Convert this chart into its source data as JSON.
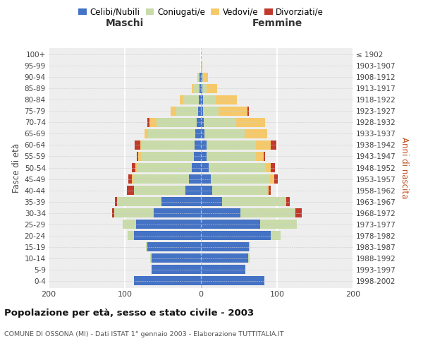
{
  "age_groups": [
    "0-4",
    "5-9",
    "10-14",
    "15-19",
    "20-24",
    "25-29",
    "30-34",
    "35-39",
    "40-44",
    "45-49",
    "50-54",
    "55-59",
    "60-64",
    "65-69",
    "70-74",
    "75-79",
    "80-84",
    "85-89",
    "90-94",
    "95-99",
    "100+"
  ],
  "birth_years": [
    "1998-2002",
    "1993-1997",
    "1988-1992",
    "1983-1987",
    "1978-1982",
    "1973-1977",
    "1968-1972",
    "1963-1967",
    "1958-1962",
    "1953-1957",
    "1948-1952",
    "1943-1947",
    "1938-1942",
    "1933-1937",
    "1928-1932",
    "1923-1927",
    "1918-1922",
    "1913-1917",
    "1908-1912",
    "1903-1907",
    "≤ 1902"
  ],
  "males": {
    "celibi": [
      88,
      65,
      65,
      70,
      88,
      85,
      62,
      52,
      20,
      16,
      12,
      9,
      8,
      7,
      6,
      4,
      3,
      2,
      2,
      0,
      0
    ],
    "coniugati": [
      0,
      0,
      2,
      2,
      8,
      18,
      52,
      58,
      68,
      73,
      72,
      70,
      70,
      62,
      52,
      28,
      20,
      8,
      3,
      0,
      0
    ],
    "vedovi": [
      0,
      0,
      0,
      0,
      0,
      0,
      0,
      0,
      0,
      2,
      2,
      3,
      2,
      5,
      10,
      8,
      5,
      2,
      0,
      0,
      0
    ],
    "divorziati": [
      0,
      0,
      0,
      0,
      0,
      0,
      3,
      3,
      9,
      4,
      5,
      2,
      7,
      0,
      2,
      0,
      0,
      0,
      0,
      0,
      0
    ]
  },
  "females": {
    "nubili": [
      83,
      58,
      62,
      63,
      92,
      78,
      52,
      28,
      15,
      13,
      10,
      7,
      7,
      5,
      4,
      3,
      3,
      2,
      2,
      0,
      0
    ],
    "coniugate": [
      0,
      0,
      2,
      2,
      13,
      48,
      72,
      82,
      72,
      78,
      75,
      65,
      65,
      52,
      42,
      20,
      16,
      5,
      2,
      0,
      0
    ],
    "vedove": [
      0,
      0,
      0,
      0,
      0,
      0,
      0,
      2,
      2,
      5,
      7,
      10,
      20,
      30,
      38,
      38,
      28,
      14,
      5,
      2,
      0
    ],
    "divorziate": [
      0,
      0,
      0,
      0,
      0,
      0,
      8,
      5,
      3,
      5,
      5,
      2,
      7,
      0,
      0,
      2,
      0,
      0,
      0,
      0,
      0
    ]
  },
  "colors": {
    "celibi_nubili": "#4472C4",
    "coniugati_e": "#c8dba8",
    "vedovi_e": "#f5c96a",
    "divorziati_e": "#c0392b"
  },
  "xlim": 200,
  "title": "Popolazione per età, sesso e stato civile - 2003",
  "subtitle": "COMUNE DI OSSONA (MI) - Dati ISTAT 1° gennaio 2003 - Elaborazione TUTTITALIA.IT",
  "ylabel_left": "Fasce di età",
  "ylabel_right": "Anni di nascita",
  "xlabel_maschi": "Maschi",
  "xlabel_femmine": "Femmine",
  "plot_bg_color": "#eeeeee",
  "fig_bg_color": "#ffffff",
  "legend_labels": [
    "Celibi/Nubili",
    "Coniugati/e",
    "Vedovi/e",
    "Divorziati/e"
  ]
}
